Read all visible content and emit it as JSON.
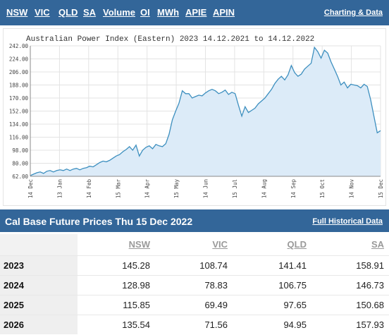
{
  "nav": {
    "tabs": [
      "NSW",
      "VIC",
      "QLD",
      "SA",
      "Volume",
      "OI",
      "MWh",
      "APIE",
      "APIN"
    ],
    "right_link": "Charting & Data"
  },
  "chart_data": {
    "type": "area",
    "title": "Australian Power Index (Eastern) 2023 14.12.2021 to 14.12.2022",
    "xlabel": "",
    "ylabel": "",
    "ylim": [
      62.0,
      242.0
    ],
    "yticks": [
      "242.00",
      "224.00",
      "206.00",
      "188.00",
      "170.00",
      "152.00",
      "134.00",
      "116.00",
      "98.00",
      "80.00",
      "62.00"
    ],
    "xticks": [
      "14 Dec",
      "13 Jan",
      "14 Feb",
      "15 Mar",
      "14 Apr",
      "15 May",
      "14 Jun",
      "15 Jul",
      "14 Aug",
      "14 Sep",
      "15 Oct",
      "14 Nov",
      "15 Dec"
    ],
    "grid": true,
    "line_color": "#3d8fbf",
    "fill_color": "#dcebf8",
    "values": [
      63,
      65,
      67,
      68,
      66,
      69,
      70,
      68,
      70,
      71,
      70,
      72,
      70,
      72,
      73,
      71,
      73,
      74,
      76,
      75,
      78,
      81,
      83,
      82,
      84,
      87,
      90,
      92,
      96,
      99,
      103,
      98,
      105,
      90,
      98,
      102,
      104,
      100,
      106,
      104,
      103,
      107,
      120,
      140,
      152,
      163,
      180,
      176,
      176,
      170,
      172,
      174,
      173,
      177,
      180,
      182,
      180,
      176,
      178,
      181,
      175,
      178,
      176,
      160,
      145,
      158,
      150,
      153,
      156,
      162,
      166,
      170,
      176,
      182,
      190,
      196,
      200,
      195,
      202,
      215,
      205,
      200,
      203,
      210,
      214,
      218,
      240,
      234,
      225,
      236,
      232,
      220,
      210,
      200,
      188,
      192,
      184,
      189,
      188,
      187,
      184,
      189,
      186,
      168,
      145,
      122,
      125
    ]
  },
  "futures": {
    "title": "Cal Base Future Prices Thu 15 Dec 2022",
    "link": "Full Historical Data",
    "columns": [
      "NSW",
      "VIC",
      "QLD",
      "SA"
    ],
    "rows": [
      {
        "year": "2023",
        "values": [
          "145.28",
          "108.74",
          "141.41",
          "158.91"
        ]
      },
      {
        "year": "2024",
        "values": [
          "128.98",
          "78.83",
          "106.75",
          "146.73"
        ]
      },
      {
        "year": "2025",
        "values": [
          "115.85",
          "69.49",
          "97.65",
          "150.68"
        ]
      },
      {
        "year": "2026",
        "values": [
          "135.54",
          "71.56",
          "94.95",
          "157.93"
        ]
      }
    ]
  }
}
